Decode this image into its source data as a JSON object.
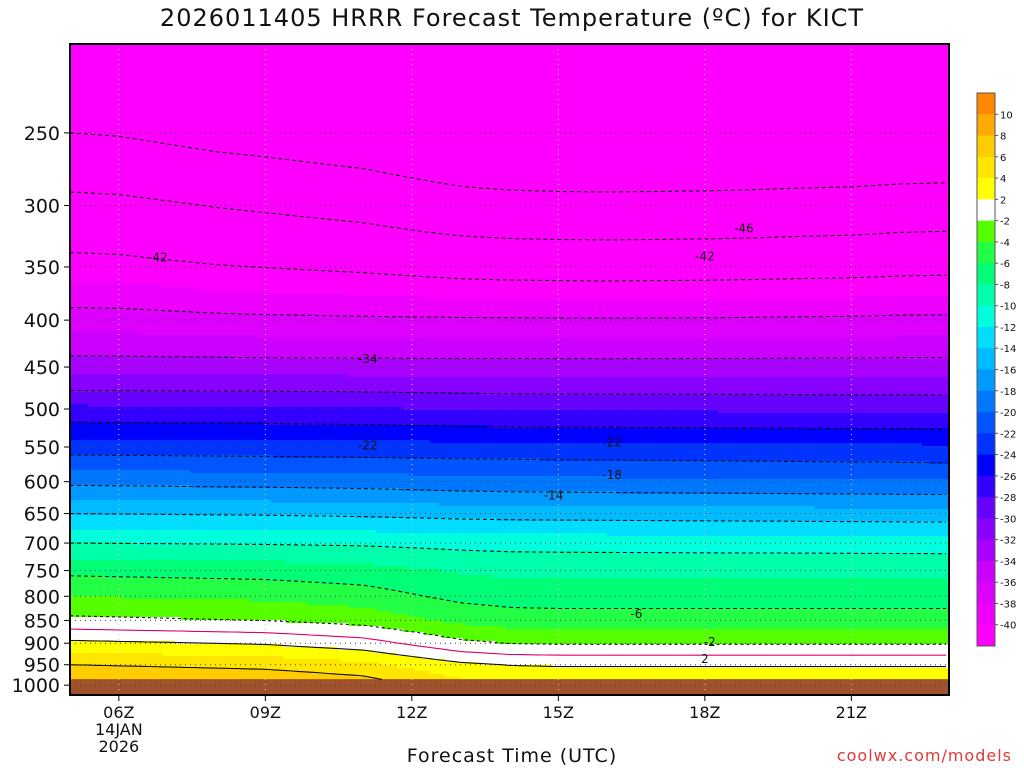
{
  "header": {
    "title": "2026011405 HRRR Forecast Temperature (ºC) for KICT"
  },
  "footer": {
    "credit": "coolwx.com/models"
  },
  "chart_data": {
    "type": "time-height contour",
    "title": "2026011405 HRRR Forecast Temperature (ºC) for KICT",
    "xlabel": "Forecast Time (UTC)",
    "ylabel": "",
    "x_range_hours": [
      5,
      23
    ],
    "y_range_hpa": [
      200,
      1025
    ],
    "y_scale": "log",
    "y_ticks": [
      250,
      300,
      350,
      400,
      450,
      500,
      550,
      600,
      650,
      700,
      750,
      800,
      850,
      900,
      950,
      1000
    ],
    "x_ticks": [
      {
        "hour": 6,
        "label": "06Z",
        "date": [
          "14JAN",
          "2026"
        ]
      },
      {
        "hour": 9,
        "label": "09Z"
      },
      {
        "hour": 12,
        "label": "12Z"
      },
      {
        "hour": 15,
        "label": "15Z"
      },
      {
        "hour": 18,
        "label": "18Z"
      },
      {
        "hour": 21,
        "label": "21Z"
      }
    ],
    "grid": "dotted",
    "colorbar": {
      "placement": "right",
      "levels": [
        -40,
        -38,
        -36,
        -34,
        -32,
        -30,
        -28,
        -26,
        -24,
        -22,
        -20,
        -18,
        -16,
        -14,
        -12,
        -10,
        -8,
        -6,
        -4,
        -2,
        2,
        4,
        6,
        8,
        10
      ],
      "colors": [
        "#ff00ff",
        "#ee00ff",
        "#dd00ff",
        "#cc00ff",
        "#aa00ff",
        "#8800ff",
        "#6600ff",
        "#3300ff",
        "#0000ff",
        "#0033ff",
        "#0055ff",
        "#0077ff",
        "#0099ff",
        "#00bbff",
        "#00ddff",
        "#00ffdd",
        "#00ffaa",
        "#00ff77",
        "#22ff44",
        "#55ff00",
        "#ffffff",
        "#ffff00",
        "#ffe600",
        "#ffcc00",
        "#ffaa00",
        "#ff8800"
      ],
      "labels": [
        "-40",
        "-38",
        "-36",
        "-34",
        "-32",
        "-30",
        "-28",
        "-26",
        "-24",
        "-22",
        "-20",
        "-18",
        "-16",
        "-14",
        "-12",
        "-10",
        "-8",
        "-6",
        "-4",
        "-2",
        "2",
        "4",
        "6",
        "8",
        "10"
      ]
    },
    "ground_color": "#a0522d",
    "contour_labels": [
      {
        "text": "-46",
        "hour": 18.8,
        "p": 318
      },
      {
        "text": "-42",
        "hour": 6.8,
        "p": 342
      },
      {
        "text": "-42",
        "hour": 18.0,
        "p": 341
      },
      {
        "text": "-34",
        "hour": 11.1,
        "p": 441
      },
      {
        "text": "-22",
        "hour": 11.1,
        "p": 548
      },
      {
        "text": "-22",
        "hour": 16.1,
        "p": 544
      },
      {
        "text": "-18",
        "hour": 16.1,
        "p": 590
      },
      {
        "text": "-14",
        "hour": 14.9,
        "p": 621
      },
      {
        "text": "-6",
        "hour": 16.6,
        "p": 836
      },
      {
        "text": "-2",
        "hour": 18.1,
        "p": 897
      },
      {
        "text": "2",
        "hour": 18.0,
        "p": 937
      }
    ]
  }
}
